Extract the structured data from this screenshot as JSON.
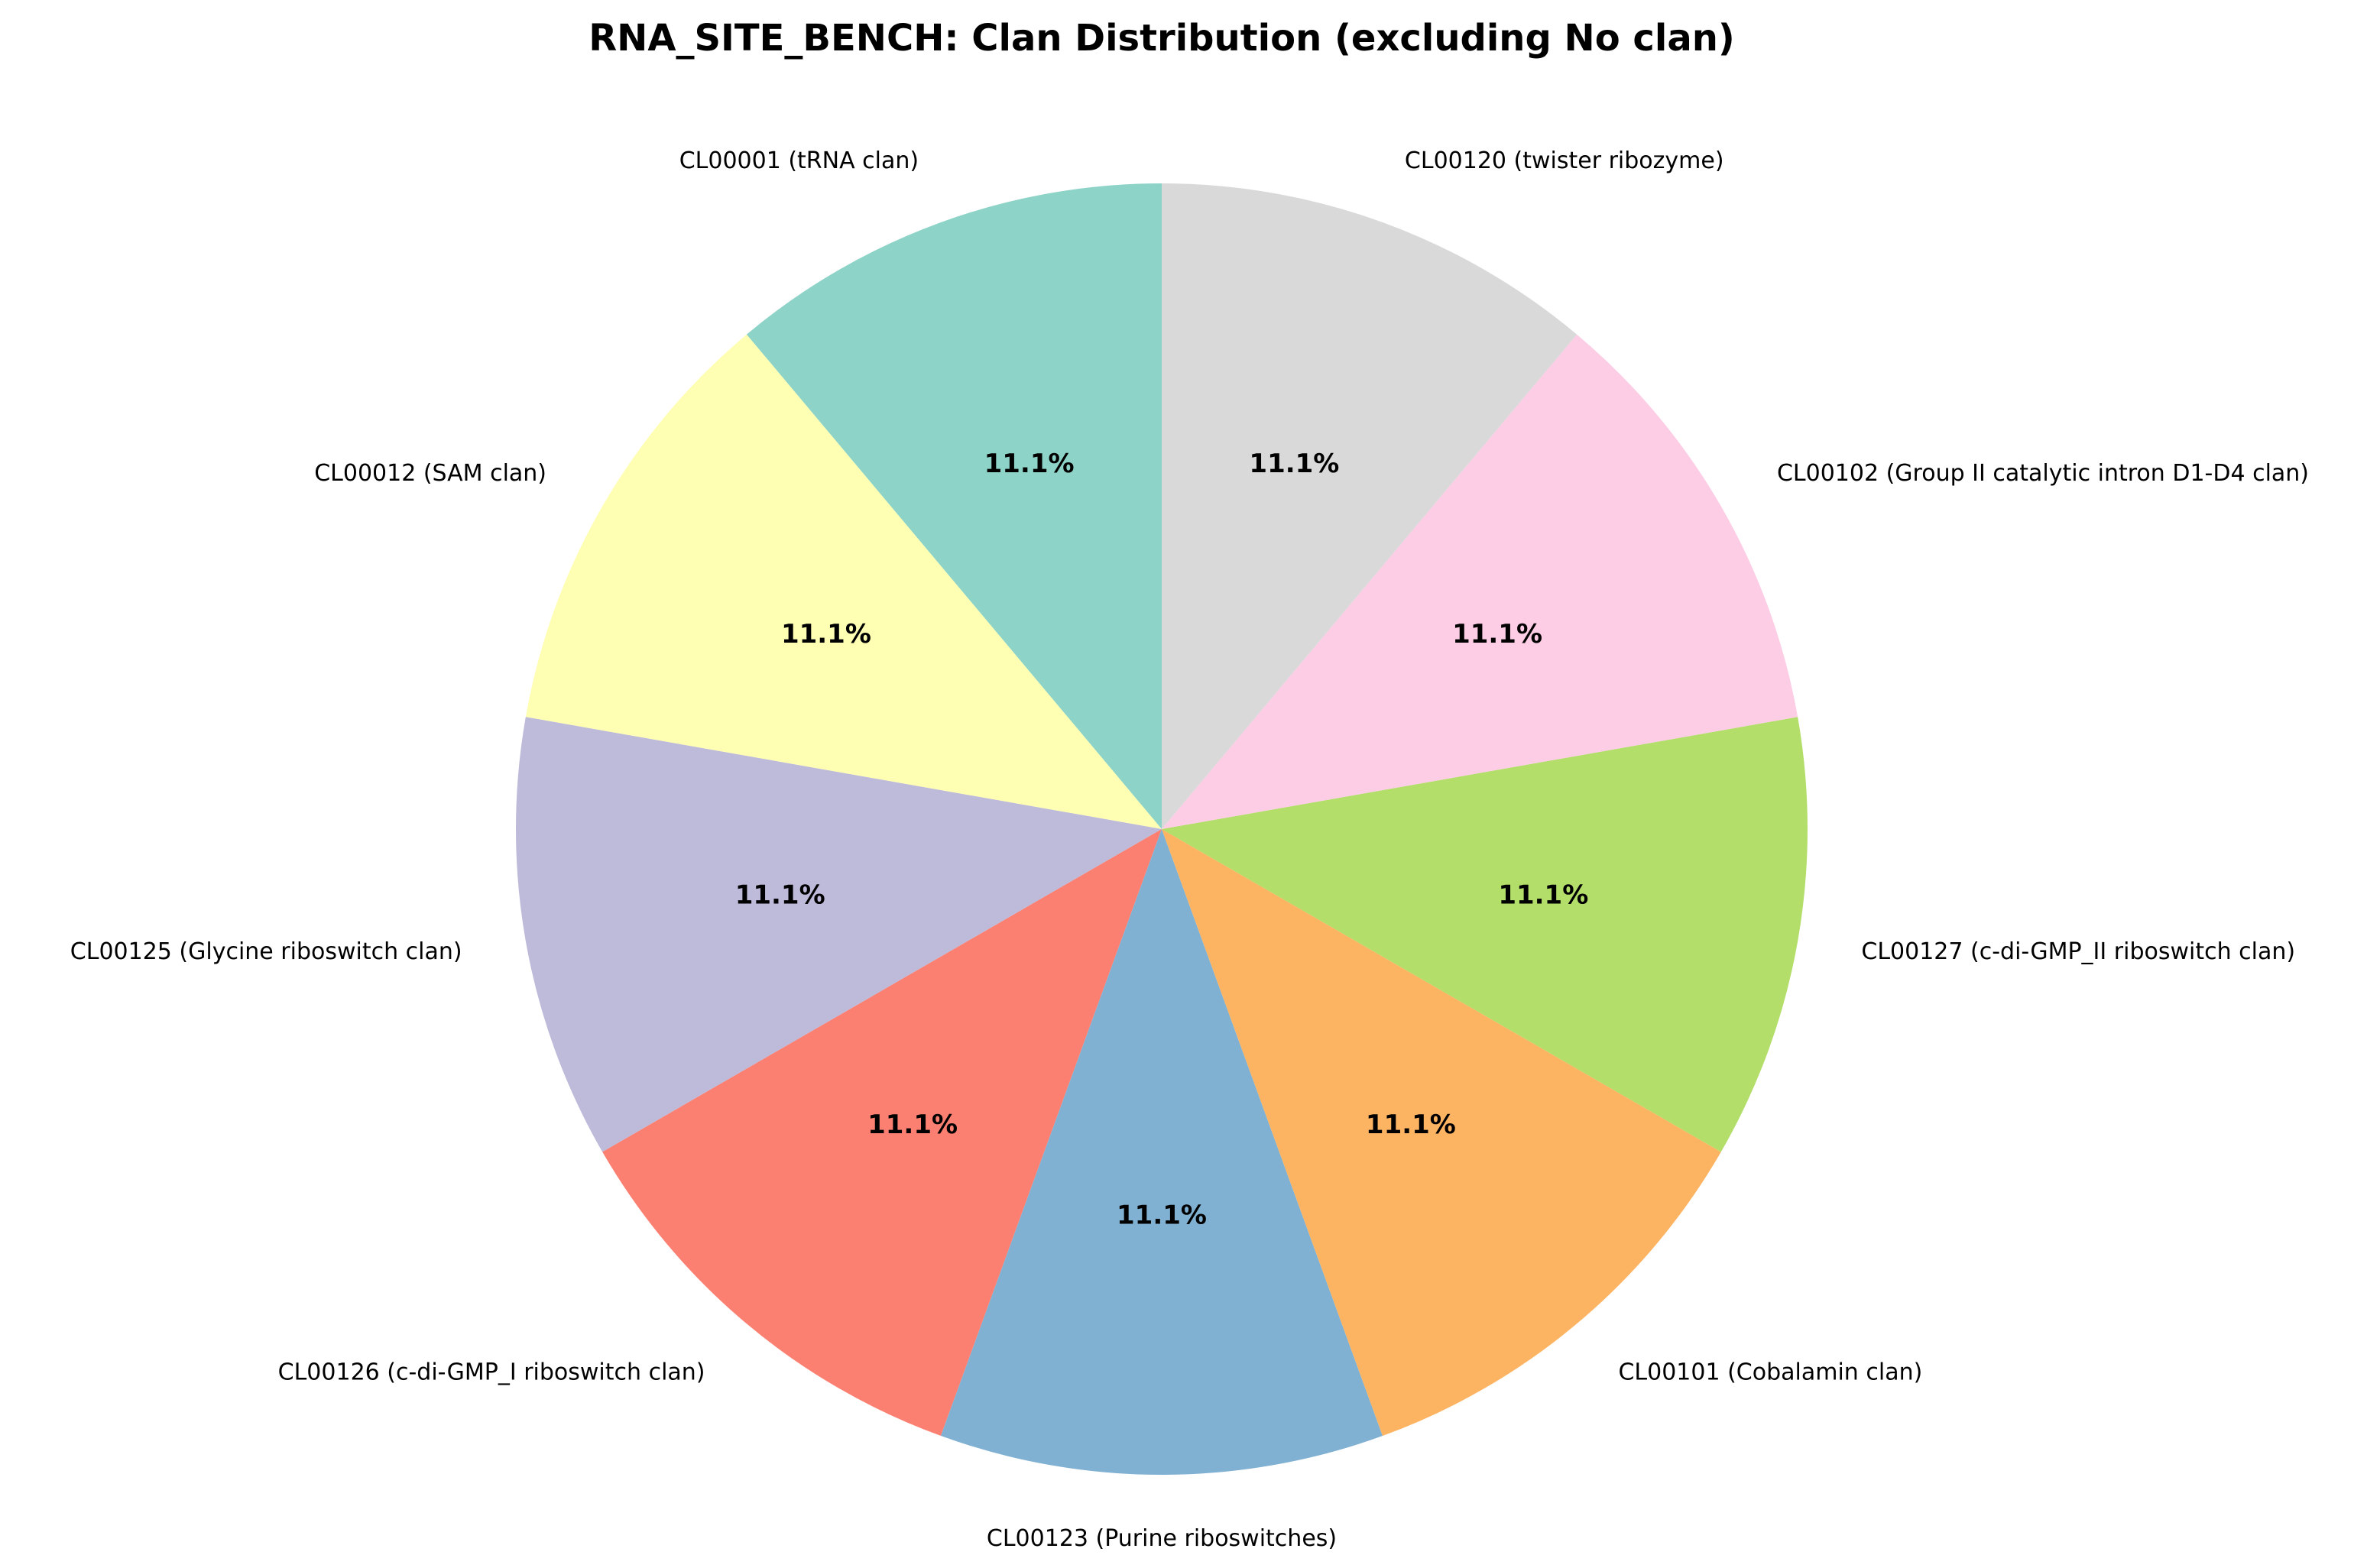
{
  "chart_data": {
    "type": "pie",
    "title": "RNA_SITE_BENCH: Clan Distribution (excluding No clan)",
    "start_angle_deg": 90,
    "direction": "counterclockwise",
    "slices": [
      {
        "label": "CL00001 (tRNA clan)",
        "value": 11.1,
        "pct_label": "11.1%",
        "color": "#8dd3c7"
      },
      {
        "label": "CL00012 (SAM clan)",
        "value": 11.1,
        "pct_label": "11.1%",
        "color": "#ffffb3"
      },
      {
        "label": "CL00125 (Glycine riboswitch clan)",
        "value": 11.1,
        "pct_label": "11.1%",
        "color": "#bebada"
      },
      {
        "label": "CL00126 (c-di-GMP_I riboswitch clan)",
        "value": 11.1,
        "pct_label": "11.1%",
        "color": "#fb8072"
      },
      {
        "label": "CL00123 (Purine riboswitches)",
        "value": 11.1,
        "pct_label": "11.1%",
        "color": "#80b1d3"
      },
      {
        "label": "CL00101 (Cobalamin clan)",
        "value": 11.1,
        "pct_label": "11.1%",
        "color": "#fdb462"
      },
      {
        "label": "CL00127 (c-di-GMP_II riboswitch clan)",
        "value": 11.1,
        "pct_label": "11.1%",
        "color": "#b3de69"
      },
      {
        "label": "CL00102 (Group II catalytic intron D1-D4 clan)",
        "value": 11.1,
        "pct_label": "11.1%",
        "color": "#fccde5"
      },
      {
        "label": "CL00120 (twister ribozyme)",
        "value": 11.1,
        "pct_label": "11.1%",
        "color": "#d9d9d9"
      }
    ]
  }
}
